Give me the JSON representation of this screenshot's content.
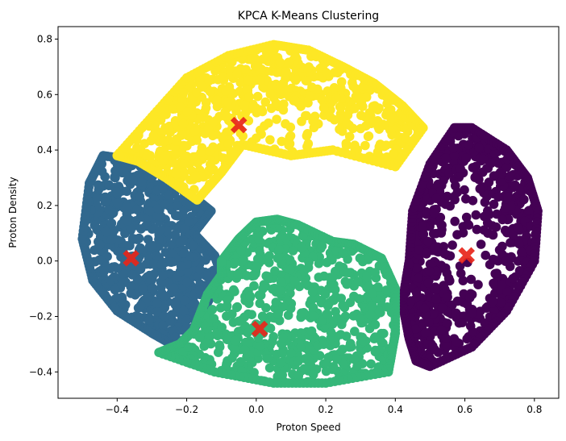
{
  "chart_data": {
    "type": "scatter",
    "title": "KPCA K-Means Clustering",
    "xlabel": "Proton Speed",
    "ylabel": "Proton Density",
    "xlim": [
      -0.57,
      0.87
    ],
    "ylim": [
      -0.495,
      0.845
    ],
    "xticks": [
      -0.4,
      -0.2,
      0.0,
      0.2,
      0.4,
      0.6,
      0.8
    ],
    "xtick_labels": [
      "−0.4",
      "−0.2",
      "0.0",
      "0.2",
      "0.4",
      "0.6",
      "0.8"
    ],
    "yticks": [
      -0.4,
      -0.2,
      0.0,
      0.2,
      0.4,
      0.6,
      0.8
    ],
    "ytick_labels": [
      "−0.4",
      "−0.2",
      "0.0",
      "0.2",
      "0.4",
      "0.6",
      "0.8"
    ],
    "grid": false,
    "clusters": [
      {
        "color": "#440154",
        "outline": [
          [
            0.44,
            0.0
          ],
          [
            0.45,
            0.18
          ],
          [
            0.5,
            0.35
          ],
          [
            0.57,
            0.48
          ],
          [
            0.62,
            0.48
          ],
          [
            0.72,
            0.4
          ],
          [
            0.78,
            0.3
          ],
          [
            0.81,
            0.18
          ],
          [
            0.8,
            0.0
          ],
          [
            0.72,
            -0.18
          ],
          [
            0.62,
            -0.31
          ],
          [
            0.5,
            -0.38
          ],
          [
            0.46,
            -0.36
          ],
          [
            0.44,
            -0.28
          ],
          [
            0.42,
            -0.15
          ]
        ],
        "hollow": [
          [
            0.62,
            0.04
          ],
          [
            0.13,
            0.35
          ]
        ],
        "sparse_band": [
          [
            0.38,
            0.4
          ],
          [
            -0.05,
            0.35
          ]
        ]
      },
      {
        "color": "#31688e",
        "outline": [
          [
            -0.48,
            0.28
          ],
          [
            -0.44,
            0.38
          ],
          [
            -0.34,
            0.36
          ],
          [
            -0.26,
            0.3
          ],
          [
            -0.17,
            0.22
          ],
          [
            -0.13,
            0.18
          ],
          [
            -0.18,
            0.1
          ],
          [
            -0.12,
            0.02
          ],
          [
            -0.1,
            -0.05
          ],
          [
            -0.14,
            -0.15
          ],
          [
            -0.18,
            -0.25
          ],
          [
            -0.23,
            -0.31
          ],
          [
            -0.3,
            -0.26
          ],
          [
            -0.4,
            -0.18
          ],
          [
            -0.47,
            -0.07
          ],
          [
            -0.5,
            0.08
          ]
        ]
      },
      {
        "color": "#35b779",
        "outline": [
          [
            -0.1,
            0.0
          ],
          [
            -0.05,
            0.08
          ],
          [
            0.0,
            0.14
          ],
          [
            0.06,
            0.15
          ],
          [
            0.12,
            0.13
          ],
          [
            0.22,
            0.07
          ],
          [
            0.28,
            0.06
          ],
          [
            0.36,
            0.01
          ],
          [
            0.4,
            -0.1
          ],
          [
            0.4,
            -0.26
          ],
          [
            0.38,
            -0.4
          ],
          [
            0.2,
            -0.44
          ],
          [
            0.05,
            -0.44
          ],
          [
            -0.12,
            -0.4
          ],
          [
            -0.28,
            -0.33
          ],
          [
            -0.22,
            -0.3
          ],
          [
            -0.18,
            -0.25
          ],
          [
            -0.14,
            -0.12
          ],
          [
            -0.1,
            -0.05
          ]
        ]
      },
      {
        "color": "#fde725",
        "outline": [
          [
            -0.4,
            0.38
          ],
          [
            -0.3,
            0.52
          ],
          [
            -0.2,
            0.66
          ],
          [
            -0.08,
            0.74
          ],
          [
            0.05,
            0.78
          ],
          [
            0.15,
            0.76
          ],
          [
            0.25,
            0.7
          ],
          [
            0.34,
            0.64
          ],
          [
            0.42,
            0.56
          ],
          [
            0.48,
            0.48
          ],
          [
            0.4,
            0.34
          ],
          [
            0.22,
            0.4
          ],
          [
            0.1,
            0.38
          ],
          [
            -0.04,
            0.42
          ],
          [
            -0.1,
            0.32
          ],
          [
            -0.17,
            0.22
          ],
          [
            -0.26,
            0.3
          ],
          [
            -0.34,
            0.36
          ]
        ],
        "hollow": [
          [
            0.14,
            0.44
          ],
          [
            0.28,
            0.16
          ]
        ],
        "sparse_band": [
          [
            0.2,
            0.2
          ],
          [
            0.08,
            0.18
          ]
        ]
      }
    ],
    "centroids": [
      {
        "x": 0.605,
        "y": 0.02
      },
      {
        "x": -0.36,
        "y": 0.01
      },
      {
        "x": 0.01,
        "y": -0.245
      },
      {
        "x": -0.05,
        "y": 0.49
      }
    ],
    "centroid_color": "#e8261b"
  }
}
